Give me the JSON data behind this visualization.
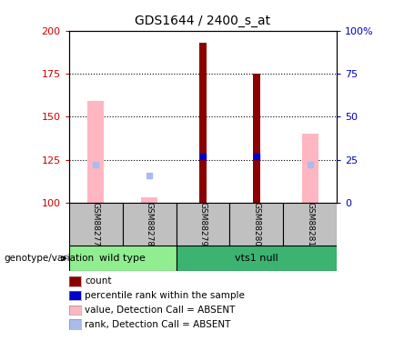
{
  "title": "GDS1644 / 2400_s_at",
  "samples": [
    "GSM88277",
    "GSM88278",
    "GSM88279",
    "GSM88280",
    "GSM88281"
  ],
  "ylim_left": [
    100,
    200
  ],
  "ylim_right": [
    0,
    100
  ],
  "yticks_left": [
    100,
    125,
    150,
    175,
    200
  ],
  "yticks_right": [
    0,
    25,
    50,
    75,
    100
  ],
  "ytick_labels_left": [
    "100",
    "125",
    "150",
    "175",
    "200"
  ],
  "ytick_labels_right": [
    "0",
    "25",
    "50",
    "75",
    "100%"
  ],
  "hlines": [
    125,
    150,
    175
  ],
  "count_bars": {
    "GSM88277": null,
    "GSM88278": null,
    "GSM88279": 193,
    "GSM88280": 175,
    "GSM88281": null
  },
  "count_color": "#8B0000",
  "count_bar_width": 0.13,
  "pink_bars": {
    "GSM88277": 159,
    "GSM88278": 103,
    "GSM88279": null,
    "GSM88280": null,
    "GSM88281": 140
  },
  "pink_color": "#FFB6C1",
  "pink_bar_width": 0.3,
  "blue_squares": {
    "GSM88277": null,
    "GSM88278": null,
    "GSM88279": 127,
    "GSM88280": 127,
    "GSM88281": null
  },
  "blue_square_color": "#0000CD",
  "blue_marker_size": 5,
  "light_blue_squares": {
    "GSM88277": 122,
    "GSM88278": 116,
    "GSM88279": null,
    "GSM88280": null,
    "GSM88281": 122
  },
  "light_blue_color": "#AABBEE",
  "light_blue_marker_size": 4,
  "wt_color": "#90EE90",
  "vts_color": "#3CB371",
  "sample_box_color": "#C0C0C0",
  "legend_items": [
    {
      "label": "count",
      "color": "#8B0000"
    },
    {
      "label": "percentile rank within the sample",
      "color": "#0000CD"
    },
    {
      "label": "value, Detection Call = ABSENT",
      "color": "#FFB6C1"
    },
    {
      "label": "rank, Detection Call = ABSENT",
      "color": "#AABBEE"
    }
  ],
  "genotype_label": "genotype/variation",
  "axis_color_left": "#CC0000",
  "axis_color_right": "#0000BB"
}
